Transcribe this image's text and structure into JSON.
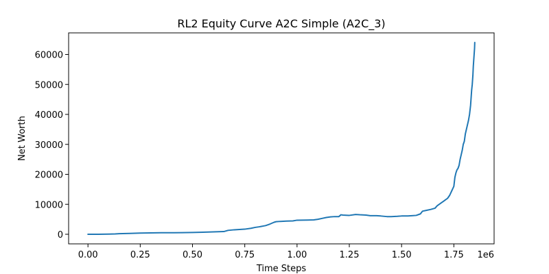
{
  "chart_data": {
    "type": "line",
    "title": "RL2 Equity Curve A2C Simple (A2C_3)",
    "xlabel": "Time Steps",
    "ylabel": "Net Worth",
    "x_offset_label": "1e6",
    "xlim": [
      -0.0925,
      1.9425
    ],
    "ylim": [
      -3200,
      67200
    ],
    "grid": false,
    "x_ticks": [
      0.0,
      0.25,
      0.5,
      0.75,
      1.0,
      1.25,
      1.5,
      1.75
    ],
    "x_tick_labels": [
      "0.00",
      "0.25",
      "0.50",
      "0.75",
      "1.00",
      "1.25",
      "1.50",
      "1.75"
    ],
    "y_ticks": [
      0,
      10000,
      20000,
      30000,
      40000,
      50000,
      60000
    ],
    "y_tick_labels": [
      "0",
      "10000",
      "20000",
      "30000",
      "40000",
      "50000",
      "60000"
    ],
    "series": [
      {
        "color": "#1f77b4",
        "x": [
          0.0,
          0.05,
          0.1,
          0.13,
          0.15,
          0.2,
          0.25,
          0.3,
          0.35,
          0.4,
          0.45,
          0.5,
          0.55,
          0.6,
          0.65,
          0.67,
          0.7,
          0.75,
          0.78,
          0.8,
          0.82,
          0.85,
          0.87,
          0.89,
          0.9,
          0.92,
          0.95,
          0.98,
          1.0,
          1.05,
          1.08,
          1.1,
          1.12,
          1.14,
          1.16,
          1.18,
          1.2,
          1.21,
          1.22,
          1.25,
          1.28,
          1.3,
          1.33,
          1.35,
          1.38,
          1.4,
          1.43,
          1.45,
          1.48,
          1.5,
          1.53,
          1.55,
          1.57,
          1.59,
          1.6,
          1.62,
          1.64,
          1.65,
          1.66,
          1.67,
          1.69,
          1.7,
          1.71,
          1.72,
          1.73,
          1.74,
          1.75,
          1.755,
          1.76,
          1.765,
          1.77,
          1.775,
          1.78,
          1.785,
          1.79,
          1.795,
          1.8,
          1.805,
          1.81,
          1.815,
          1.82,
          1.825,
          1.83,
          1.835,
          1.838,
          1.841,
          1.843,
          1.845,
          1.847,
          1.849,
          1.85
        ],
        "y": [
          0,
          0,
          50,
          100,
          200,
          300,
          400,
          450,
          500,
          500,
          550,
          600,
          700,
          800,
          900,
          1300,
          1500,
          1700,
          2000,
          2300,
          2500,
          2900,
          3400,
          4000,
          4200,
          4300,
          4400,
          4450,
          4700,
          4750,
          4800,
          5000,
          5300,
          5600,
          5800,
          5900,
          5900,
          6500,
          6400,
          6300,
          6600,
          6500,
          6400,
          6200,
          6200,
          6100,
          5900,
          5900,
          6000,
          6100,
          6100,
          6200,
          6300,
          6800,
          7700,
          8000,
          8300,
          8500,
          8700,
          9500,
          10500,
          11000,
          11500,
          12000,
          13000,
          14500,
          16000,
          19000,
          20500,
          21500,
          22000,
          23000,
          25000,
          26500,
          28000,
          30000,
          31000,
          33500,
          35000,
          36500,
          38000,
          40000,
          43000,
          48000,
          50000,
          53000,
          56000,
          58000,
          60000,
          62000,
          64000
        ]
      }
    ]
  }
}
